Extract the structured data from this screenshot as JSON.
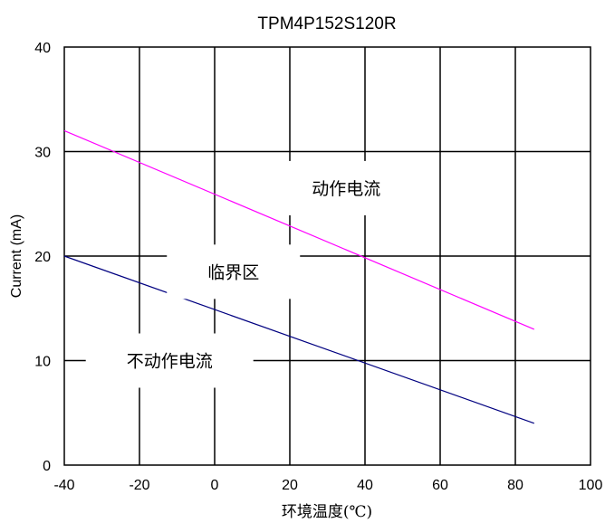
{
  "chart_data": {
    "type": "line",
    "title": "TPM4P152S120R",
    "xlabel": "环境温度(℃)",
    "ylabel": "Current (mA)",
    "xlim": [
      -40,
      100
    ],
    "ylim": [
      0,
      40
    ],
    "x_ticks": [
      "-40",
      "-20",
      "0",
      "20",
      "40",
      "60",
      "80",
      "100"
    ],
    "y_ticks": [
      "0",
      "10",
      "20",
      "30",
      "40"
    ],
    "grid": true,
    "series": [
      {
        "color": "#ff00ff",
        "points": [
          [
            -40,
            32
          ],
          [
            85,
            13
          ]
        ]
      },
      {
        "color": "#000080",
        "points": [
          [
            -40,
            20
          ],
          [
            85,
            4
          ]
        ]
      }
    ],
    "annotations": [
      {
        "text": "动作电流",
        "x": 35,
        "y": 26.5
      },
      {
        "text": "临界区",
        "x": 5,
        "y": 18.5
      },
      {
        "text": "不动作电流",
        "x": -12,
        "y": 10
      }
    ]
  }
}
